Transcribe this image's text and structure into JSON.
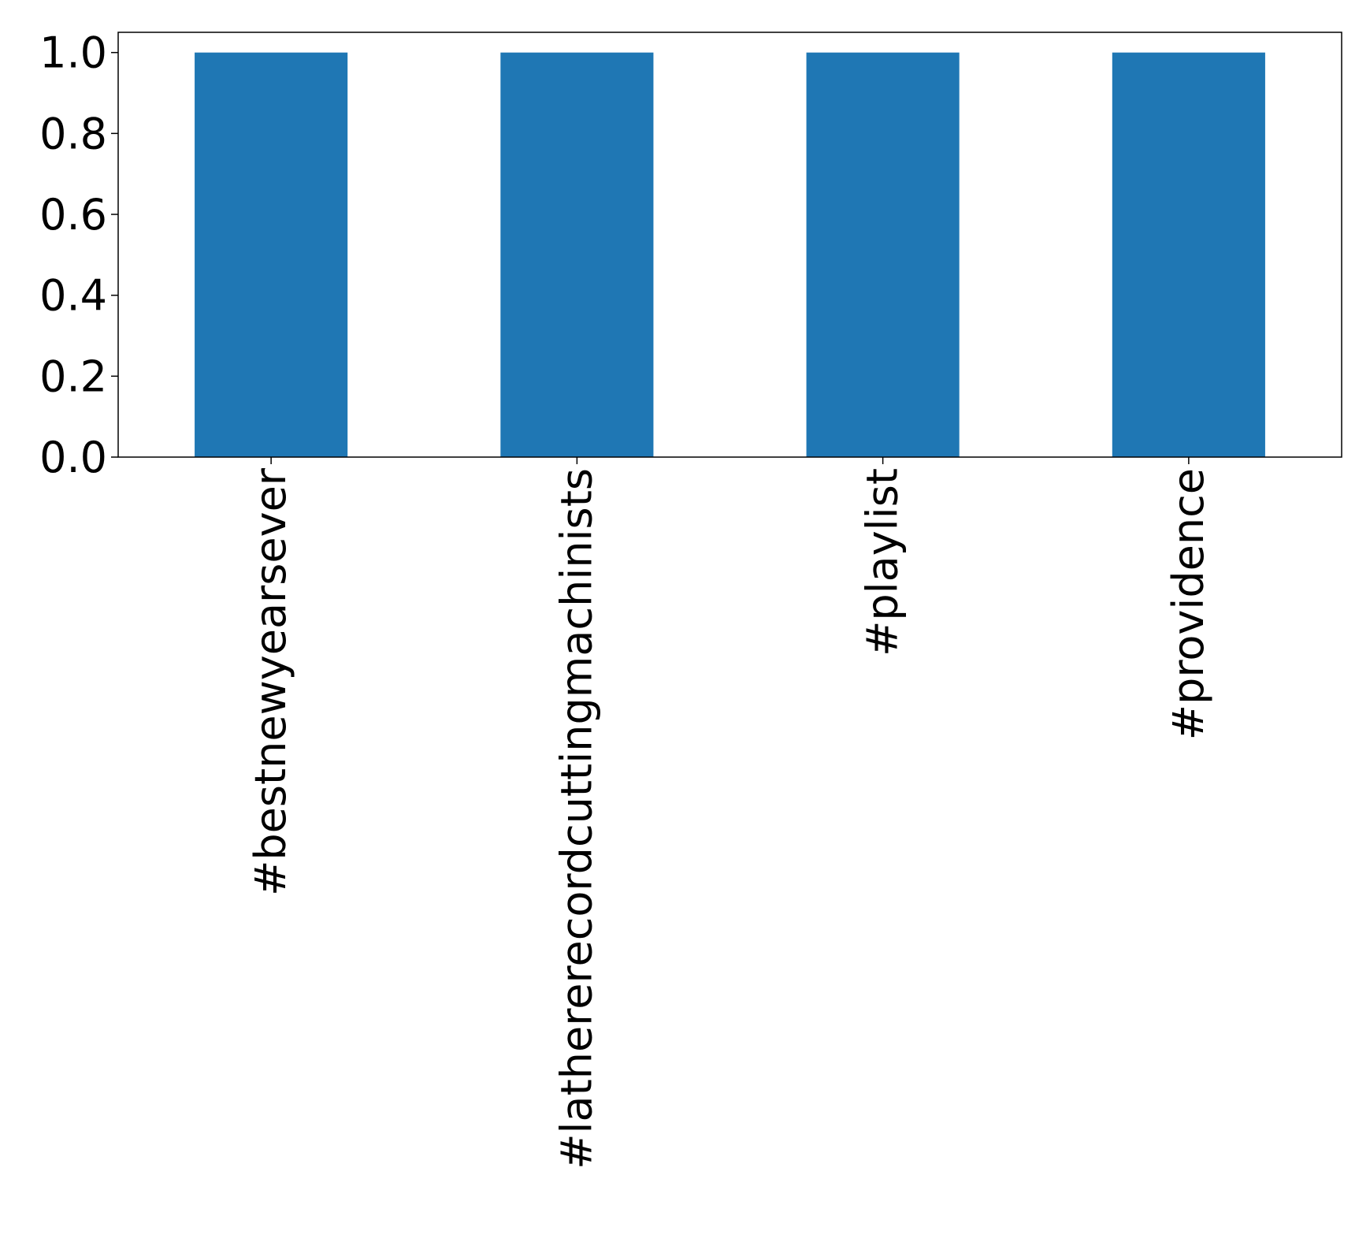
{
  "chart_data": {
    "type": "bar",
    "title": "",
    "xlabel": "",
    "ylabel": "",
    "categories": [
      "#bestnewyearsever",
      "#lathererecordcuttingmachinists",
      "#playlist",
      "#providence"
    ],
    "values": [
      1.0,
      1.0,
      1.0,
      1.0
    ],
    "ylim": [
      0,
      1.05
    ],
    "yticks": [
      "0.0",
      "0.2",
      "0.4",
      "0.6",
      "0.8",
      "1.0"
    ],
    "bar_color": "#1f77b4",
    "grid": false,
    "legend": "none"
  }
}
